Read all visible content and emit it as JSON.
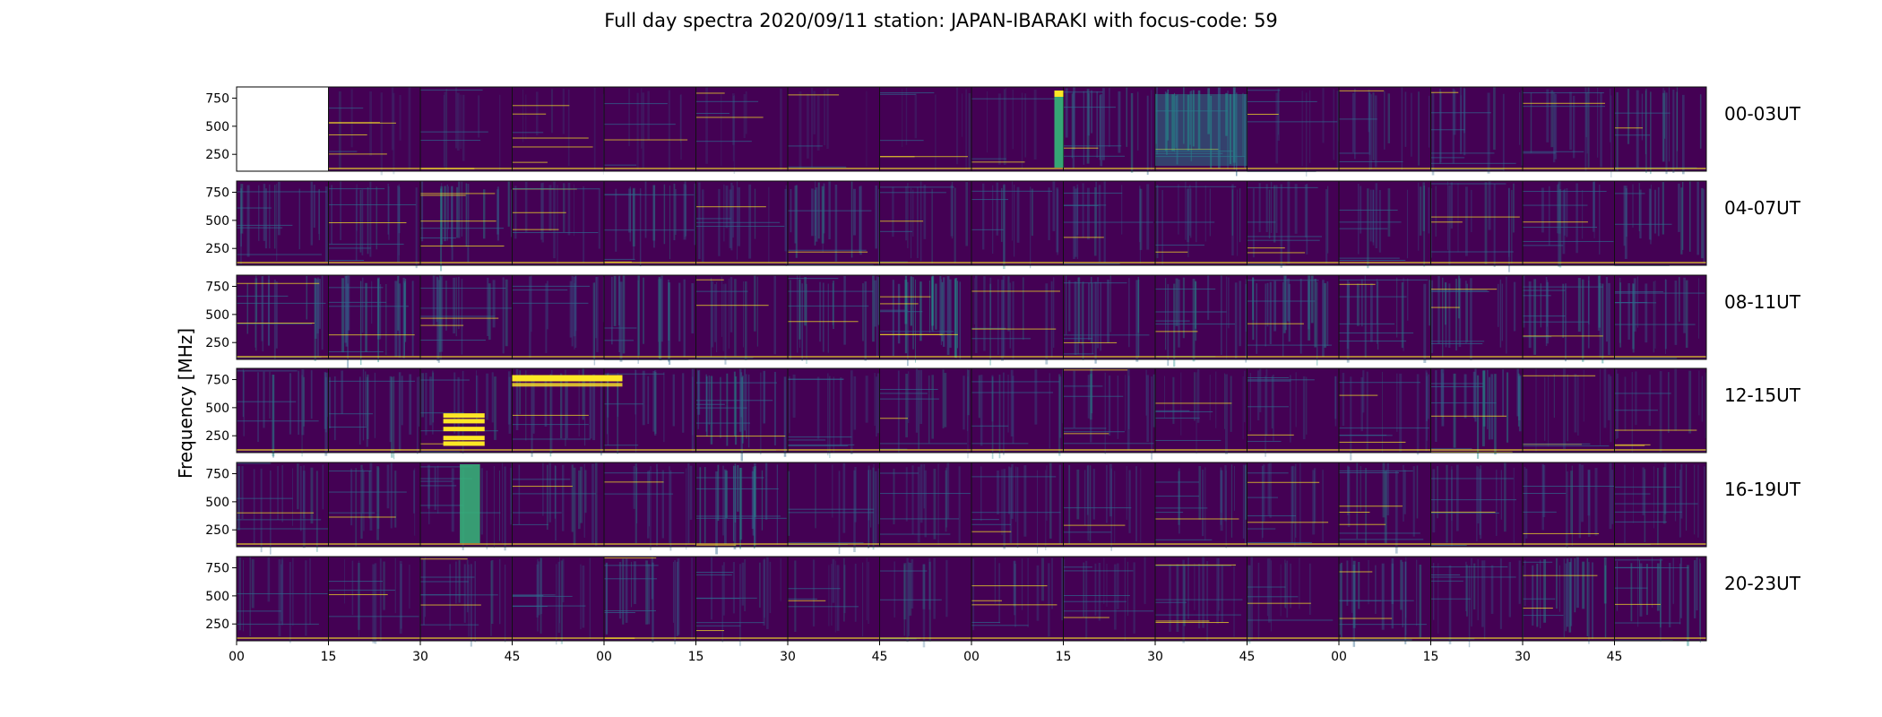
{
  "chart_data": {
    "type": "heatmap",
    "title": "Full day spectra 2020/09/11 station: JAPAN-IBARAKI with focus-code: 59",
    "ylabel": "Frequency [MHz]",
    "xlabel": "",
    "row_labels": [
      "00-03UT",
      "04-07UT",
      "08-11UT",
      "12-15UT",
      "16-19UT",
      "20-23UT"
    ],
    "x_tick_labels": [
      "00",
      "15",
      "30",
      "45",
      "00",
      "15",
      "30",
      "45",
      "00",
      "15",
      "30",
      "45",
      "00",
      "15",
      "30",
      "45"
    ],
    "y_ticks": [
      250,
      500,
      750
    ],
    "y_range_mhz": [
      100,
      850
    ],
    "panels_per_row": 16,
    "panel_minutes": 15,
    "colormap": "viridis",
    "grid": false,
    "legend": "none",
    "colors": {
      "background_low": "#440154",
      "mid": "#31688e",
      "cyan_green": "#21918c",
      "green": "#35b779",
      "high": "#fde725",
      "missing": "#ffffff"
    },
    "notable_features": [
      {
        "row": "00-03UT",
        "panel_index": 0,
        "note": "missing data"
      },
      {
        "row": "00-03UT",
        "panel_index": 8,
        "note": "bright yellow/green vertical burst at panel end"
      },
      {
        "row": "00-03UT",
        "panel_index": 10,
        "note": "strong broadband green emission"
      },
      {
        "row": "12-15UT",
        "panel_index": 2,
        "note": "bright yellow horizontal bands"
      },
      {
        "row": "12-15UT",
        "panel_index": 3,
        "note": "bright yellow bands near 750-800 MHz"
      },
      {
        "row": "16-19UT",
        "panel_index": 2,
        "note": "green vertical burst"
      }
    ]
  }
}
